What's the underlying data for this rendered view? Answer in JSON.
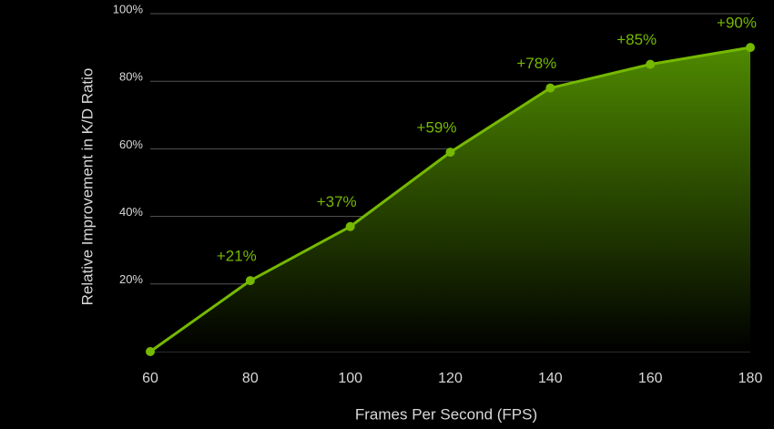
{
  "chart_data": {
    "type": "area",
    "x_label": "Frames Per Second (FPS)",
    "y_label": "Relative Improvement in K/D Ratio",
    "x": [
      60,
      80,
      100,
      120,
      140,
      160,
      180
    ],
    "values": [
      0,
      21,
      37,
      59,
      78,
      85,
      90
    ],
    "value_labels": [
      null,
      "+21%",
      "+37%",
      "+59%",
      "+78%",
      "+85%",
      "+90%"
    ],
    "color": "#76b900",
    "xlim": [
      60,
      180
    ],
    "xticks": [
      60,
      80,
      100,
      120,
      140,
      160,
      180
    ],
    "ylim": [
      0,
      100
    ],
    "yticks": [
      {
        "value": 20,
        "label": "20%"
      },
      {
        "value": 40,
        "label": "40%"
      },
      {
        "value": 60,
        "label": "60%"
      },
      {
        "value": 80,
        "label": "80%"
      },
      {
        "value": 100,
        "label": "100%"
      }
    ],
    "grid": true
  }
}
